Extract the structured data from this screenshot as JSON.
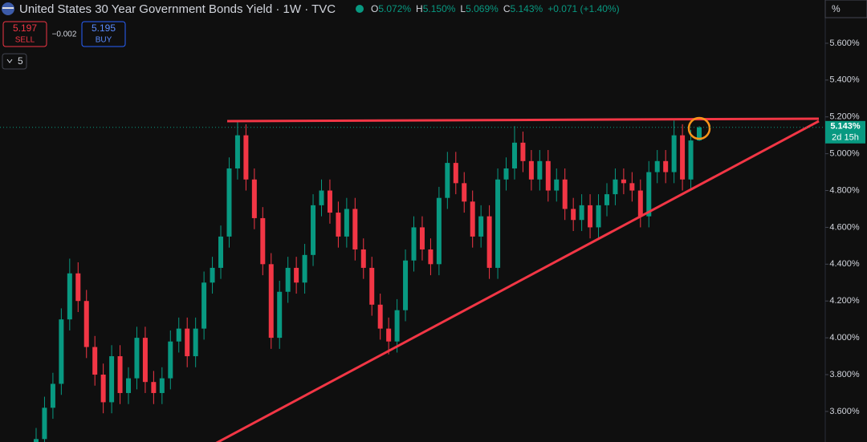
{
  "ui": {
    "ohlc": [
      {
        "key": "O",
        "value": "5.072%"
      },
      {
        "key": "H",
        "value": "5.150%"
      },
      {
        "key": "L",
        "value": "5.069%"
      },
      {
        "key": "C",
        "value": "5.143%"
      }
    ],
    "change": "+0.071 (+1.40%)",
    "sell_price": "5.197",
    "sell_label": "SELL",
    "spread": "−0.002",
    "buy_price": "5.195",
    "buy_label": "BUY",
    "indicators": "5",
    "unit_button": "%",
    "countdown": "2d 15h"
  },
  "chart_data": {
    "type": "candlestick",
    "title": "United States 30 Year Government Bonds Yield · 1W · TVC",
    "up_color": "#089981",
    "down_color": "#f23645",
    "ylim": [
      3.434,
      5.835
    ],
    "yticks": [
      {
        "value": 3.6,
        "label": "3.600%"
      },
      {
        "value": 3.8,
        "label": "3.800%"
      },
      {
        "value": 4.0,
        "label": "4.000%"
      },
      {
        "value": 4.2,
        "label": "4.200%"
      },
      {
        "value": 4.4,
        "label": "4.400%"
      },
      {
        "value": 4.6,
        "label": "4.600%"
      },
      {
        "value": 4.8,
        "label": "4.800%"
      },
      {
        "value": 5.0,
        "label": "5.000%"
      },
      {
        "value": 5.2,
        "label": "5.200%"
      },
      {
        "value": 5.4,
        "label": "5.400%"
      },
      {
        "value": 5.6,
        "label": "5.600%"
      }
    ],
    "last_price_label": "5.143%",
    "open": [
      3.4,
      3.45,
      3.62,
      3.75,
      4.1,
      4.35,
      4.2,
      3.95,
      3.8,
      3.65,
      3.9,
      3.7,
      3.78,
      4.0,
      3.76,
      3.7,
      3.78,
      3.98,
      4.05,
      3.9,
      4.05,
      4.3,
      4.38,
      4.55,
      4.92,
      5.1,
      4.86,
      4.65,
      4.4,
      4.0,
      4.25,
      4.38,
      4.3,
      4.45,
      4.72,
      4.8,
      4.68,
      4.55,
      4.7,
      4.48,
      4.38,
      4.18,
      4.05,
      3.98,
      4.15,
      4.42,
      4.6,
      4.48,
      4.4,
      4.76,
      4.95,
      4.84,
      4.74,
      4.55,
      4.66,
      4.38,
      4.86,
      4.92,
      5.06,
      4.96,
      4.86,
      4.96,
      4.8,
      4.86,
      4.7,
      4.64,
      4.72,
      4.6,
      4.72,
      4.78,
      4.86,
      4.84,
      4.8,
      4.66,
      4.9,
      4.96,
      4.9,
      5.1,
      4.86,
      5.072
    ],
    "high": [
      3.51,
      3.68,
      3.81,
      4.16,
      4.43,
      4.41,
      4.26,
      4.01,
      3.86,
      3.96,
      3.96,
      3.84,
      4.06,
      4.06,
      3.82,
      3.84,
      4.04,
      4.11,
      4.11,
      4.11,
      4.36,
      4.44,
      4.61,
      4.98,
      5.18,
      5.16,
      4.92,
      4.71,
      4.46,
      4.31,
      4.44,
      4.44,
      4.51,
      4.78,
      4.86,
      4.86,
      4.74,
      4.76,
      4.76,
      4.54,
      4.44,
      4.24,
      4.11,
      4.21,
      4.48,
      4.66,
      4.66,
      4.54,
      4.82,
      5.01,
      5.01,
      4.9,
      4.8,
      4.72,
      4.72,
      4.92,
      4.98,
      5.15,
      5.12,
      5.02,
      5.02,
      5.02,
      4.92,
      4.92,
      4.76,
      4.78,
      4.78,
      4.78,
      4.84,
      4.92,
      4.92,
      4.9,
      4.86,
      4.96,
      5.02,
      5.02,
      5.18,
      5.16,
      5.13,
      5.15
    ],
    "low": [
      3.34,
      3.39,
      3.56,
      3.69,
      4.04,
      4.14,
      3.89,
      3.74,
      3.59,
      3.59,
      3.64,
      3.64,
      3.72,
      3.7,
      3.64,
      3.64,
      3.72,
      3.92,
      3.84,
      3.84,
      3.99,
      4.24,
      4.32,
      4.49,
      4.86,
      4.8,
      4.59,
      4.34,
      3.94,
      3.94,
      4.19,
      4.24,
      4.24,
      4.39,
      4.66,
      4.62,
      4.49,
      4.49,
      4.42,
      4.32,
      4.12,
      3.99,
      3.91,
      3.92,
      4.09,
      4.36,
      4.42,
      4.34,
      4.34,
      4.7,
      4.78,
      4.68,
      4.49,
      4.49,
      4.32,
      4.32,
      4.8,
      4.86,
      4.9,
      4.8,
      4.8,
      4.74,
      4.74,
      4.64,
      4.58,
      4.58,
      4.54,
      4.54,
      4.66,
      4.72,
      4.78,
      4.74,
      4.6,
      4.6,
      4.84,
      4.84,
      4.84,
      4.8,
      4.8,
      5.069
    ],
    "close": [
      3.45,
      3.62,
      3.75,
      4.1,
      4.35,
      4.2,
      3.95,
      3.8,
      3.65,
      3.9,
      3.7,
      3.78,
      4.0,
      3.76,
      3.7,
      3.78,
      3.98,
      4.05,
      3.9,
      4.05,
      4.3,
      4.38,
      4.55,
      4.92,
      5.1,
      4.86,
      4.65,
      4.4,
      4.0,
      4.25,
      4.38,
      4.3,
      4.45,
      4.72,
      4.8,
      4.68,
      4.55,
      4.7,
      4.48,
      4.38,
      4.18,
      4.05,
      3.98,
      4.15,
      4.42,
      4.6,
      4.48,
      4.4,
      4.76,
      4.95,
      4.84,
      4.74,
      4.55,
      4.66,
      4.38,
      4.86,
      4.92,
      5.06,
      4.96,
      4.86,
      4.96,
      4.8,
      4.86,
      4.7,
      4.64,
      4.72,
      4.6,
      4.72,
      4.78,
      4.86,
      4.84,
      4.8,
      4.66,
      4.9,
      4.96,
      4.9,
      5.1,
      4.86,
      5.072,
      5.143
    ]
  }
}
